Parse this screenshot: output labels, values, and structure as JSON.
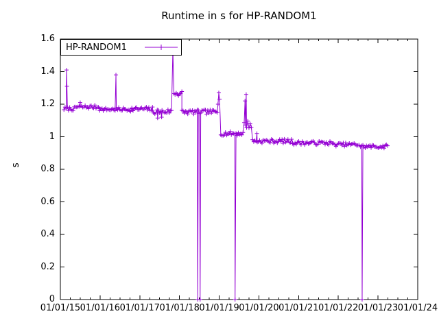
{
  "title": "Runtime in s for HP-RANDOM1",
  "legend": {
    "label": "HP-RANDOM1"
  },
  "colors": {
    "series": "#9400d3",
    "axis": "#000000",
    "background": "#ffffff"
  },
  "axes": {
    "ylabel": "s",
    "ytick_labels": [
      "0",
      "0.2",
      "0.4",
      "0.6",
      "0.8",
      "1",
      "1.2",
      "1.4",
      "1.6"
    ],
    "ytick_values": [
      0,
      0.2,
      0.4,
      0.6,
      0.8,
      1,
      1.2,
      1.4,
      1.6
    ],
    "xtick_labels": [
      "01/01/15",
      "01/01/16",
      "01/01/17",
      "01/01/18",
      "01/01/19",
      "01/01/20",
      "01/01/21",
      "01/01/22",
      "01/01/23",
      "01/01/24"
    ],
    "xtick_values": [
      2015,
      2016,
      2017,
      2018,
      2019,
      2020,
      2021,
      2022,
      2023,
      2024
    ],
    "x_minor_per_major": 4
  },
  "chart_data": {
    "type": "line",
    "title": "Runtime in s for HP-RANDOM1",
    "xlabel": "",
    "ylabel": "s",
    "x_unit": "decimal_year",
    "xlim": [
      2015,
      2024
    ],
    "ylim": [
      0,
      1.6
    ],
    "grid": false,
    "legend_position": "top-left",
    "series": [
      {
        "name": "HP-RANDOM1",
        "color": "#9400d3",
        "marker": "plus",
        "style": "linespoints",
        "sample_step_years": 0.03,
        "noise_seed": 7,
        "baseline_segments": [
          [
            2015.09,
            2015.38,
            1.172,
            0.012
          ],
          [
            2015.38,
            2015.99,
            1.183,
            0.012
          ],
          [
            2015.99,
            2016.38,
            1.168,
            0.01
          ],
          [
            2016.38,
            2016.8,
            1.168,
            0.012
          ],
          [
            2016.8,
            2017.32,
            1.17,
            0.014
          ],
          [
            2017.32,
            2017.8,
            1.155,
            0.016
          ],
          [
            2017.86,
            2018.06,
            1.268,
            0.02
          ],
          [
            2018.06,
            2018.95,
            1.152,
            0.014
          ],
          [
            2019.04,
            2019.6,
            1.02,
            0.013
          ],
          [
            2019.63,
            2019.81,
            1.075,
            0.025
          ],
          [
            2019.84,
            2020.85,
            0.973,
            0.013
          ],
          [
            2020.85,
            2021.85,
            0.962,
            0.012
          ],
          [
            2021.85,
            2022.52,
            0.952,
            0.011
          ],
          [
            2022.56,
            2023.24,
            0.94,
            0.012
          ]
        ],
        "outlier_points": [
          [
            2015.155,
            1.41
          ],
          [
            2015.165,
            1.31
          ],
          [
            2015.5,
            1.21
          ],
          [
            2016.4,
            1.38
          ],
          [
            2017.45,
            1.115
          ],
          [
            2017.55,
            1.12
          ],
          [
            2017.833,
            1.53
          ],
          [
            2018.46,
            0.0
          ],
          [
            2018.52,
            0.0
          ],
          [
            2018.97,
            1.2
          ],
          [
            2018.99,
            1.27
          ],
          [
            2019.01,
            1.23
          ],
          [
            2019.4,
            0.0
          ],
          [
            2019.65,
            1.22
          ],
          [
            2019.68,
            1.26
          ],
          [
            2019.95,
            1.02
          ],
          [
            2022.6,
            0.0
          ]
        ]
      }
    ]
  }
}
